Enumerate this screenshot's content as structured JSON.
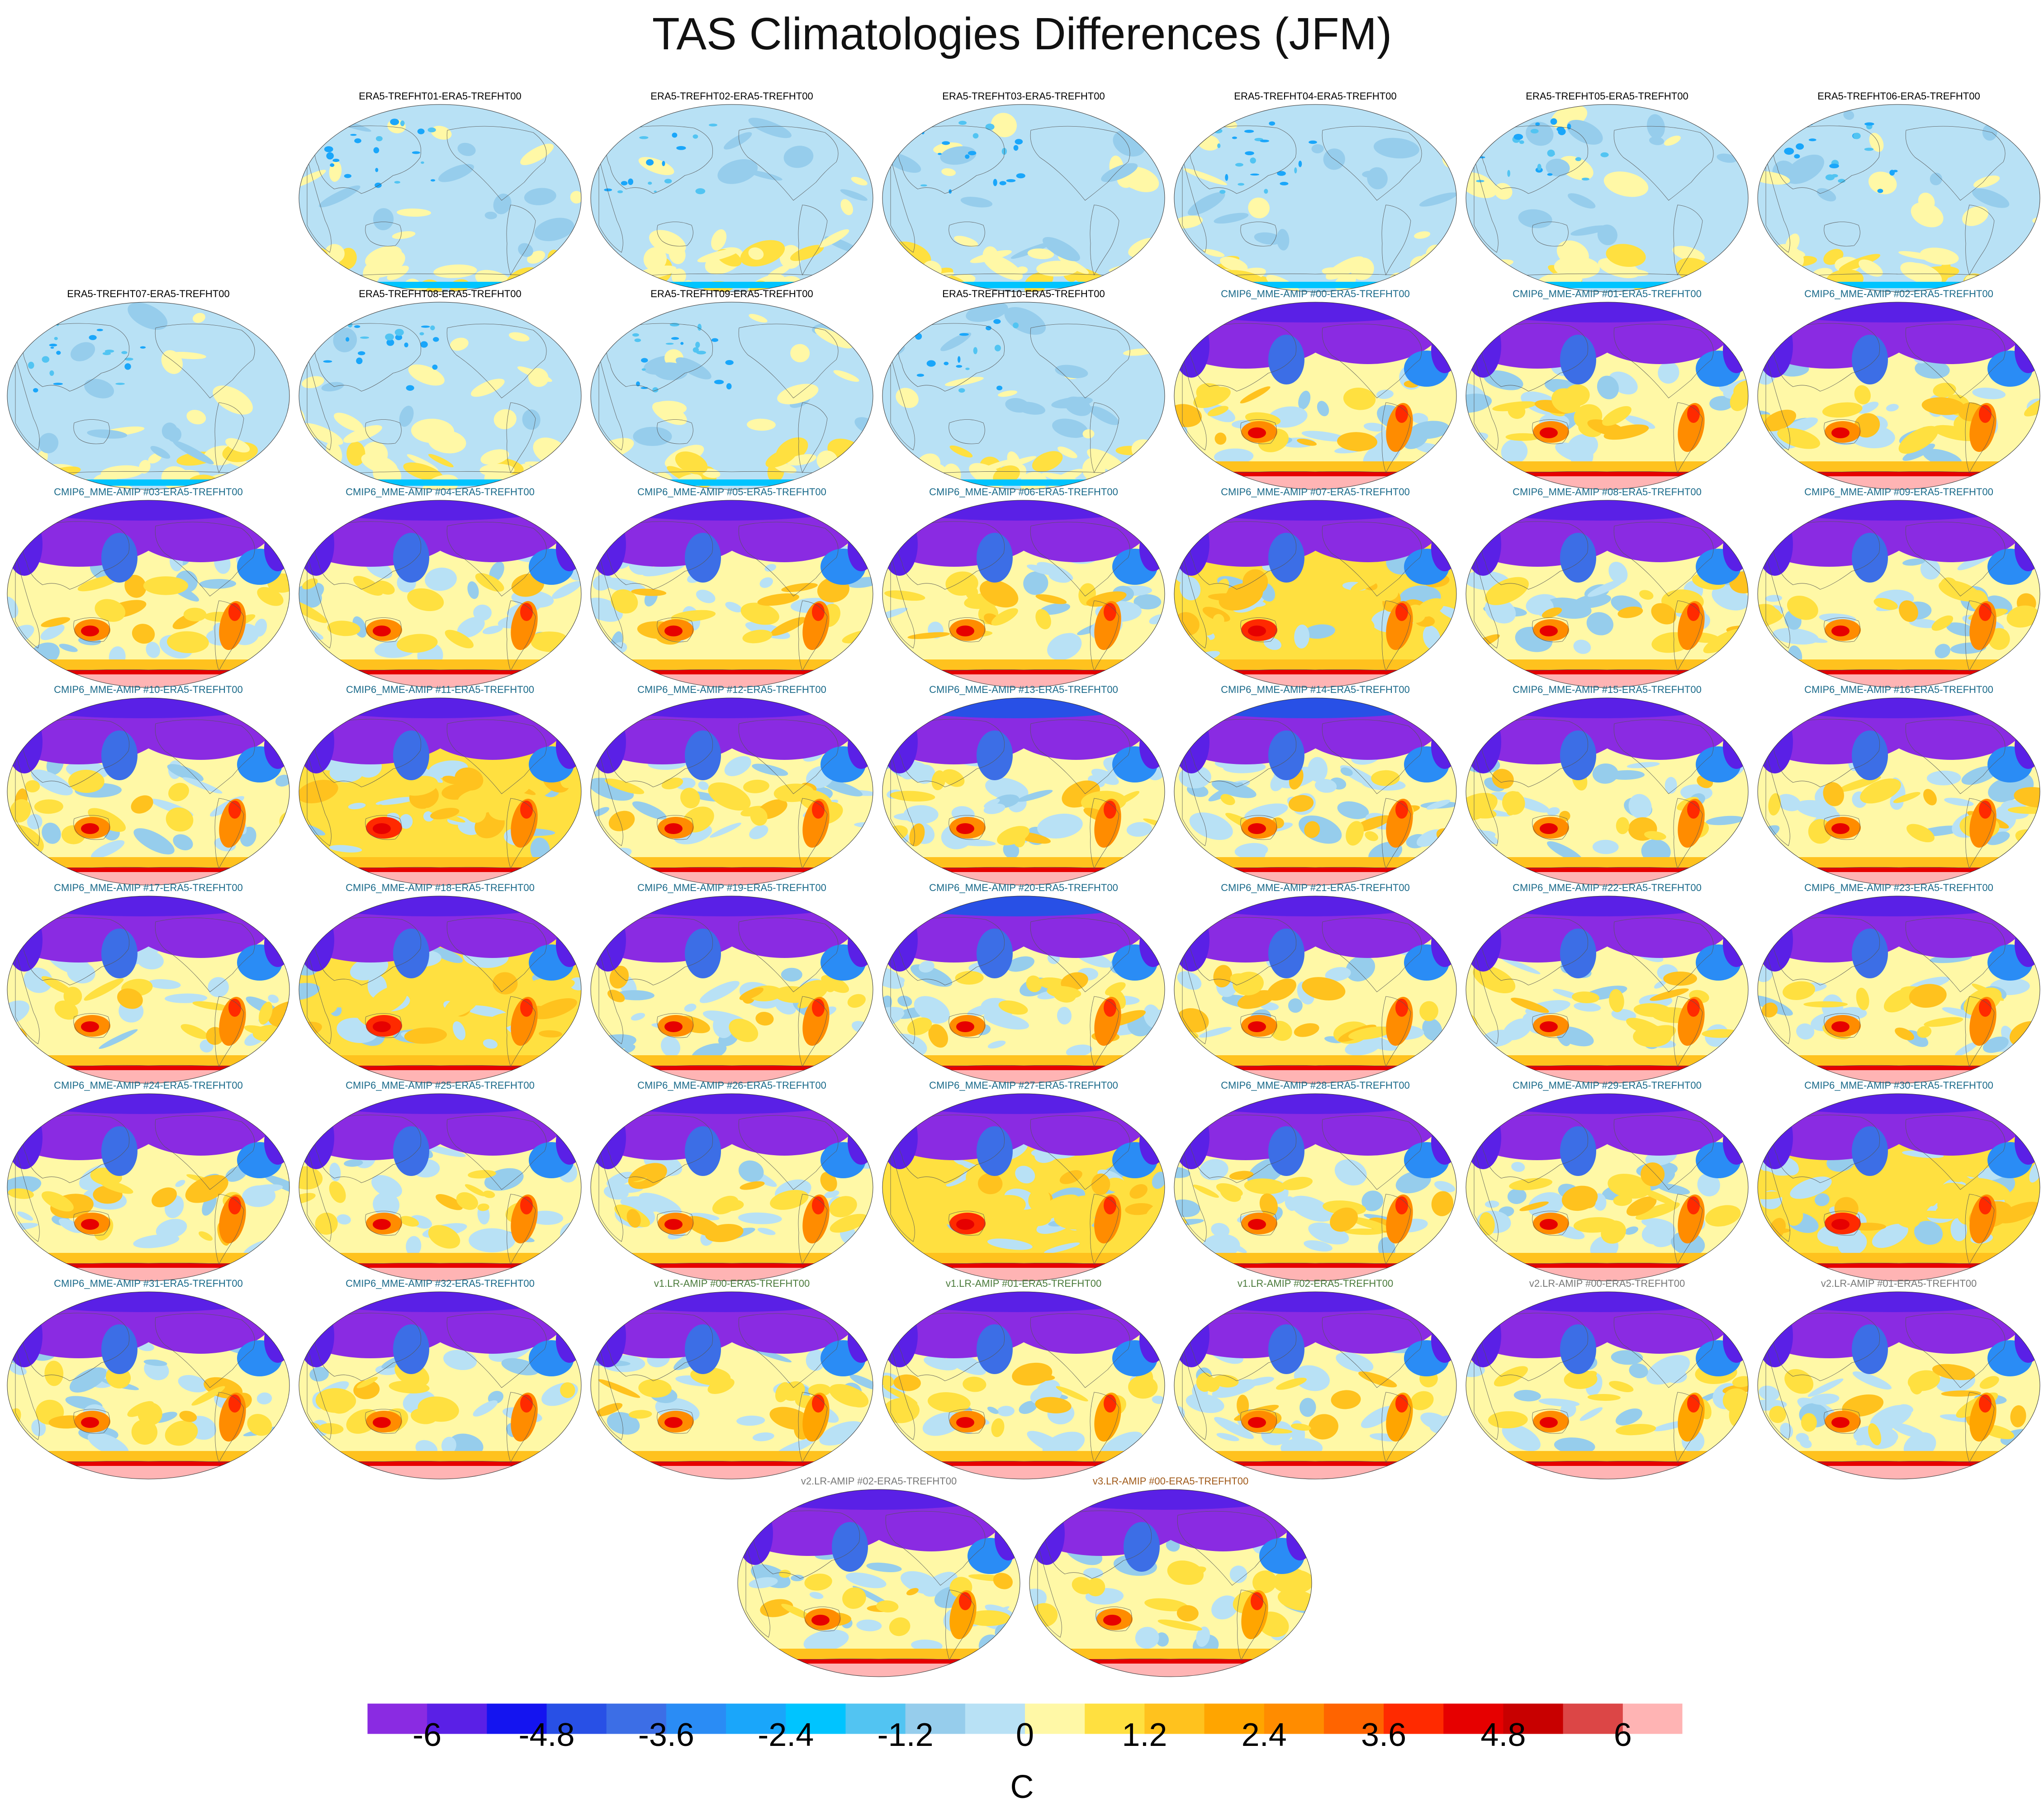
{
  "figure": {
    "title": "TAS Climatologies Differences (JFM)",
    "colorbar_unit": "C"
  },
  "colors": {
    "ensemble_title": "#000000",
    "cmip6_title": "#1a6a8a",
    "v1_title": "#4a7a3a",
    "v2_title": "#777777",
    "v3_title": "#a05a1a",
    "land_fill": "#ede6c8"
  },
  "colorbar": {
    "colors": [
      "#8a2be2",
      "#5a20e6",
      "#1414f0",
      "#2850e6",
      "#3c6ee6",
      "#2a8cf5",
      "#1aa6fa",
      "#00c4ff",
      "#52c4f2",
      "#96cdec",
      "#b8e1f5",
      "#fff8a6",
      "#ffe040",
      "#ffc21e",
      "#ffa500",
      "#ff8c00",
      "#ff6400",
      "#ff2a00",
      "#e60000",
      "#c80000",
      "#dc4646",
      "#ffb4b4"
    ],
    "tick_labels": [
      "-6",
      "-4.8",
      "-3.6",
      "-2.4",
      "-1.2",
      "0",
      "1.2",
      "2.4",
      "3.6",
      "4.8",
      "6"
    ],
    "tick_values": [
      -6,
      -4.8,
      -3.6,
      -2.4,
      -1.2,
      0,
      1.2,
      2.4,
      3.6,
      4.8,
      6
    ],
    "min": -6.6,
    "max": 6.6
  },
  "panels": [
    {
      "label": "ERA5-TREFHT01-ERA5-TREFHT00",
      "group": "ensemble",
      "scheme": "near_zero"
    },
    {
      "label": "ERA5-TREFHT02-ERA5-TREFHT00",
      "group": "ensemble",
      "scheme": "near_zero"
    },
    {
      "label": "ERA5-TREFHT03-ERA5-TREFHT00",
      "group": "ensemble",
      "scheme": "near_zero"
    },
    {
      "label": "ERA5-TREFHT04-ERA5-TREFHT00",
      "group": "ensemble",
      "scheme": "near_zero"
    },
    {
      "label": "ERA5-TREFHT05-ERA5-TREFHT00",
      "group": "ensemble",
      "scheme": "near_zero"
    },
    {
      "label": "ERA5-TREFHT06-ERA5-TREFHT00",
      "group": "ensemble",
      "scheme": "near_zero"
    },
    {
      "label": "ERA5-TREFHT07-ERA5-TREFHT00",
      "group": "ensemble",
      "scheme": "near_zero"
    },
    {
      "label": "ERA5-TREFHT08-ERA5-TREFHT00",
      "group": "ensemble",
      "scheme": "near_zero"
    },
    {
      "label": "ERA5-TREFHT09-ERA5-TREFHT00",
      "group": "ensemble",
      "scheme": "near_zero"
    },
    {
      "label": "ERA5-TREFHT10-ERA5-TREFHT00",
      "group": "ensemble",
      "scheme": "near_zero"
    },
    {
      "label": "CMIP6_MME-AMIP  #00-ERA5-TREFHT00",
      "group": "cmip6",
      "scheme": "bias"
    },
    {
      "label": "CMIP6_MME-AMIP  #01-ERA5-TREFHT00",
      "group": "cmip6",
      "scheme": "bias"
    },
    {
      "label": "CMIP6_MME-AMIP  #02-ERA5-TREFHT00",
      "group": "cmip6",
      "scheme": "bias"
    },
    {
      "label": "CMIP6_MME-AMIP  #03-ERA5-TREFHT00",
      "group": "cmip6",
      "scheme": "bias"
    },
    {
      "label": "CMIP6_MME-AMIP  #04-ERA5-TREFHT00",
      "group": "cmip6",
      "scheme": "bias"
    },
    {
      "label": "CMIP6_MME-AMIP  #05-ERA5-TREFHT00",
      "group": "cmip6",
      "scheme": "bias"
    },
    {
      "label": "CMIP6_MME-AMIP  #06-ERA5-TREFHT00",
      "group": "cmip6",
      "scheme": "bias"
    },
    {
      "label": "CMIP6_MME-AMIP  #07-ERA5-TREFHT00",
      "group": "cmip6",
      "scheme": "bias_warm"
    },
    {
      "label": "CMIP6_MME-AMIP  #08-ERA5-TREFHT00",
      "group": "cmip6",
      "scheme": "bias"
    },
    {
      "label": "CMIP6_MME-AMIP  #09-ERA5-TREFHT00",
      "group": "cmip6",
      "scheme": "bias"
    },
    {
      "label": "CMIP6_MME-AMIP  #10-ERA5-TREFHT00",
      "group": "cmip6",
      "scheme": "bias"
    },
    {
      "label": "CMIP6_MME-AMIP  #11-ERA5-TREFHT00",
      "group": "cmip6",
      "scheme": "bias_warm"
    },
    {
      "label": "CMIP6_MME-AMIP  #12-ERA5-TREFHT00",
      "group": "cmip6",
      "scheme": "bias"
    },
    {
      "label": "CMIP6_MME-AMIP  #13-ERA5-TREFHT00",
      "group": "cmip6",
      "scheme": "bias_cool"
    },
    {
      "label": "CMIP6_MME-AMIP  #14-ERA5-TREFHT00",
      "group": "cmip6",
      "scheme": "bias_cool"
    },
    {
      "label": "CMIP6_MME-AMIP  #15-ERA5-TREFHT00",
      "group": "cmip6",
      "scheme": "bias"
    },
    {
      "label": "CMIP6_MME-AMIP  #16-ERA5-TREFHT00",
      "group": "cmip6",
      "scheme": "bias"
    },
    {
      "label": "CMIP6_MME-AMIP  #17-ERA5-TREFHT00",
      "group": "cmip6",
      "scheme": "bias"
    },
    {
      "label": "CMIP6_MME-AMIP  #18-ERA5-TREFHT00",
      "group": "cmip6",
      "scheme": "bias_warm"
    },
    {
      "label": "CMIP6_MME-AMIP  #19-ERA5-TREFHT00",
      "group": "cmip6",
      "scheme": "bias"
    },
    {
      "label": "CMIP6_MME-AMIP  #20-ERA5-TREFHT00",
      "group": "cmip6",
      "scheme": "bias_cool"
    },
    {
      "label": "CMIP6_MME-AMIP  #21-ERA5-TREFHT00",
      "group": "cmip6",
      "scheme": "bias"
    },
    {
      "label": "CMIP6_MME-AMIP  #22-ERA5-TREFHT00",
      "group": "cmip6",
      "scheme": "bias"
    },
    {
      "label": "CMIP6_MME-AMIP  #23-ERA5-TREFHT00",
      "group": "cmip6",
      "scheme": "bias"
    },
    {
      "label": "CMIP6_MME-AMIP  #24-ERA5-TREFHT00",
      "group": "cmip6",
      "scheme": "bias"
    },
    {
      "label": "CMIP6_MME-AMIP  #25-ERA5-TREFHT00",
      "group": "cmip6",
      "scheme": "bias"
    },
    {
      "label": "CMIP6_MME-AMIP  #26-ERA5-TREFHT00",
      "group": "cmip6",
      "scheme": "bias"
    },
    {
      "label": "CMIP6_MME-AMIP  #27-ERA5-TREFHT00",
      "group": "cmip6",
      "scheme": "bias_warm"
    },
    {
      "label": "CMIP6_MME-AMIP  #28-ERA5-TREFHT00",
      "group": "cmip6",
      "scheme": "bias"
    },
    {
      "label": "CMIP6_MME-AMIP  #29-ERA5-TREFHT00",
      "group": "cmip6",
      "scheme": "bias"
    },
    {
      "label": "CMIP6_MME-AMIP  #30-ERA5-TREFHT00",
      "group": "cmip6",
      "scheme": "bias_warm"
    },
    {
      "label": "CMIP6_MME-AMIP  #31-ERA5-TREFHT00",
      "group": "cmip6",
      "scheme": "bias"
    },
    {
      "label": "CMIP6_MME-AMIP  #32-ERA5-TREFHT00",
      "group": "cmip6",
      "scheme": "bias"
    },
    {
      "label": "v1.LR-AMIP  #00-ERA5-TREFHT00",
      "group": "v1",
      "scheme": "bias_e3sm"
    },
    {
      "label": "v1.LR-AMIP  #01-ERA5-TREFHT00",
      "group": "v1",
      "scheme": "bias_e3sm"
    },
    {
      "label": "v1.LR-AMIP  #02-ERA5-TREFHT00",
      "group": "v1",
      "scheme": "bias_e3sm"
    },
    {
      "label": "v2.LR-AMIP  #00-ERA5-TREFHT00",
      "group": "v2",
      "scheme": "bias_e3sm"
    },
    {
      "label": "v2.LR-AMIP  #01-ERA5-TREFHT00",
      "group": "v2",
      "scheme": "bias_e3sm"
    },
    {
      "label": "v2.LR-AMIP  #02-ERA5-TREFHT00",
      "group": "v2",
      "scheme": "bias_e3sm"
    },
    {
      "label": "v3.LR-AMIP  #00-ERA5-TREFHT00",
      "group": "v3",
      "scheme": "bias_e3sm"
    }
  ]
}
